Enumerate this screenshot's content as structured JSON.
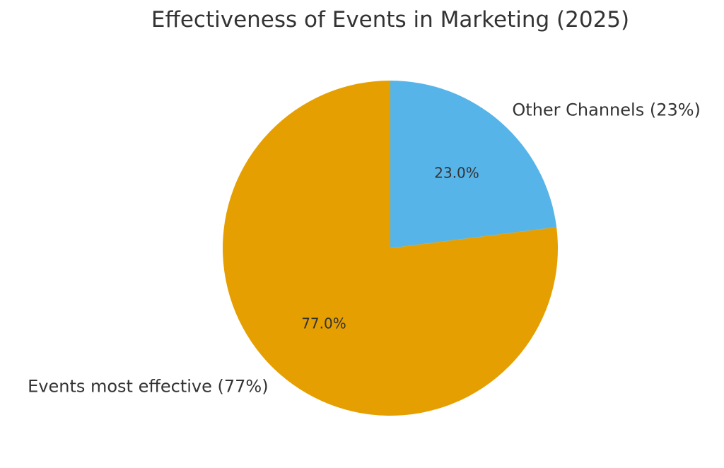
{
  "chart_data": {
    "type": "pie",
    "title": "Effectiveness of Events in Marketing (2025)",
    "start_angle_deg": 90,
    "direction": "clockwise",
    "slices": [
      {
        "label": "Other Channels (23%)",
        "value": 23.0,
        "pct_label": "23.0%",
        "color": "#56B4E9"
      },
      {
        "label": "Events most effective (77%)",
        "value": 77.0,
        "pct_label": "77.0%",
        "color": "#E69F00"
      }
    ]
  }
}
